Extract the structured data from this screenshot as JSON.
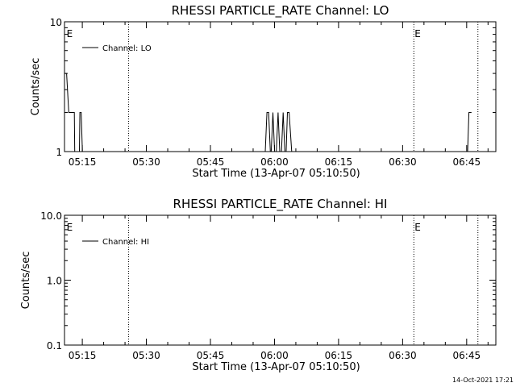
{
  "footer": {
    "generated": "14-Oct-2021 17:21"
  },
  "chart_data": [
    {
      "type": "line",
      "title": "RHESSI PARTICLE_RATE Channel: LO",
      "xlabel": "Start Time (13-Apr-07 05:10:50)",
      "ylabel": "Counts/sec",
      "yscale": "log",
      "ylim": [
        1,
        10
      ],
      "xlim_minutes": [
        0,
        101
      ],
      "y_ticks": [
        {
          "value": 1,
          "label": "1"
        },
        {
          "value": 10,
          "label": "10"
        }
      ],
      "x_ticks": [
        {
          "minute": 4.17,
          "label": "05:15"
        },
        {
          "minute": 19.17,
          "label": "05:30"
        },
        {
          "minute": 34.17,
          "label": "05:45"
        },
        {
          "minute": 49.17,
          "label": "06:00"
        },
        {
          "minute": 64.17,
          "label": "06:15"
        },
        {
          "minute": 79.17,
          "label": "06:30"
        },
        {
          "minute": 94.17,
          "label": "06:45"
        }
      ],
      "vlines": [
        {
          "minute": 15.0,
          "marker": ""
        },
        {
          "minute": 81.8,
          "marker": "E"
        },
        {
          "minute": 96.8,
          "marker": ""
        }
      ],
      "edge_markers": [
        {
          "minute": 0.3,
          "label": "E"
        }
      ],
      "legend": {
        "entry": "Channel: LO",
        "position": "top-left"
      },
      "series": [
        {
          "name": "Channel: LO",
          "x": [
            0,
            0.5,
            1,
            1.5,
            2,
            2.3,
            2.4,
            3.5,
            3.6,
            3.9,
            4.2,
            4.3,
            47.0,
            47.4,
            47.8,
            48.2,
            48.4,
            48.8,
            49.2,
            49.6,
            50.0,
            50.4,
            50.8,
            51.2,
            51.6,
            51.9,
            52.2,
            52.6,
            53.2,
            94.4,
            94.7,
            95.3
          ],
          "values": [
            4,
            4,
            2,
            2,
            2,
            2,
            1,
            1,
            2,
            2,
            1,
            1,
            1,
            2,
            2,
            1,
            1,
            2,
            1,
            1,
            2,
            1,
            1,
            2,
            1,
            1,
            2,
            2,
            1,
            1,
            2,
            2
          ]
        }
      ]
    },
    {
      "type": "line",
      "title": "RHESSI PARTICLE_RATE Channel: HI",
      "xlabel": "Start Time (13-Apr-07 05:10:50)",
      "ylabel": "Counts/sec",
      "yscale": "log",
      "ylim": [
        0.1,
        10
      ],
      "xlim_minutes": [
        0,
        101
      ],
      "y_ticks": [
        {
          "value": 0.1,
          "label": "0.1"
        },
        {
          "value": 1,
          "label": "1.0"
        },
        {
          "value": 10,
          "label": "10.0"
        }
      ],
      "x_ticks": [
        {
          "minute": 4.17,
          "label": "05:15"
        },
        {
          "minute": 19.17,
          "label": "05:30"
        },
        {
          "minute": 34.17,
          "label": "05:45"
        },
        {
          "minute": 49.17,
          "label": "06:00"
        },
        {
          "minute": 64.17,
          "label": "06:15"
        },
        {
          "minute": 79.17,
          "label": "06:30"
        },
        {
          "minute": 94.17,
          "label": "06:45"
        }
      ],
      "vlines": [
        {
          "minute": 15.0,
          "marker": ""
        },
        {
          "minute": 81.8,
          "marker": "E"
        },
        {
          "minute": 96.8,
          "marker": ""
        }
      ],
      "edge_markers": [
        {
          "minute": 0.3,
          "label": "E"
        }
      ],
      "legend": {
        "entry": "Channel: HI",
        "position": "top-left"
      },
      "series": [
        {
          "name": "Channel: HI",
          "x": [],
          "values": []
        }
      ]
    }
  ]
}
